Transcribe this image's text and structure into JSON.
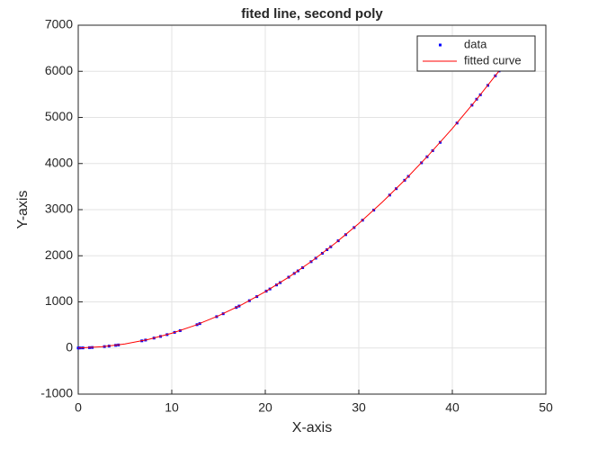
{
  "chart_data": {
    "type": "scatter",
    "title": "fited line, second poly",
    "x_label": "X-axis",
    "y_label": "Y-axis",
    "xlim": [
      0,
      50
    ],
    "ylim": [
      -1000,
      7000
    ],
    "xticks": [
      0,
      10,
      20,
      30,
      40,
      50
    ],
    "yticks": [
      -1000,
      0,
      1000,
      2000,
      3000,
      4000,
      5000,
      6000,
      7000
    ],
    "grid": true,
    "legend": "upper right",
    "series": [
      {
        "name": "data",
        "kind": "points",
        "color": "#0000ff",
        "x": [
          0,
          0.2,
          0.5,
          1.2,
          1.5,
          2.8,
          3.3,
          4,
          4.3,
          6.8,
          7.2,
          8.1,
          8.8,
          9.5,
          10.3,
          10.9,
          12.7,
          13,
          14.8,
          15.5,
          16.9,
          17.2,
          18.3,
          19.1,
          20.1,
          20.5,
          21.2,
          21.6,
          22.5,
          23.1,
          23.5,
          24,
          24.9,
          25.4,
          26.1,
          26.6,
          27,
          27.8,
          28.6,
          29.5,
          30.4,
          31.6,
          33.3,
          34,
          34.9,
          35.3,
          36.7,
          37.3,
          37.9,
          38.7,
          40.5,
          42.1,
          42.6,
          43,
          43.8,
          44.6,
          45
        ],
        "values": [
          0,
          1,
          2,
          8,
          11,
          31,
          42,
          58,
          66,
          155,
          172,
          215,
          251,
          290,
          339,
          377,
          506,
          529,
          680,
          743,
          879,
          910,
          1026,
          1115,
          1232,
          1280,
          1367,
          1418,
          1536,
          1617,
          1672,
          1742,
          1872,
          1947,
          2054,
          2132,
          2195,
          2325,
          2458,
          2612,
          2771,
          2991,
          3316,
          3455,
          3637,
          3722,
          4016,
          4147,
          4279,
          4459,
          4878,
          5266,
          5395,
          5491,
          5695,
          5903,
          6008
        ]
      },
      {
        "name": "fitted curve",
        "kind": "line",
        "color": "#ff0000",
        "x": [
          0,
          2.5,
          5,
          7.5,
          10,
          12.5,
          15,
          17.5,
          20,
          22.5,
          25,
          27.5,
          30,
          32.5,
          35,
          37.5,
          40,
          42.5,
          45
        ],
        "values": [
          0,
          26,
          88,
          186,
          320,
          491,
          698,
          941,
          1220,
          1536,
          1888,
          2276,
          2700,
          3161,
          3658,
          4191,
          4760,
          5366,
          6008
        ]
      }
    ]
  }
}
